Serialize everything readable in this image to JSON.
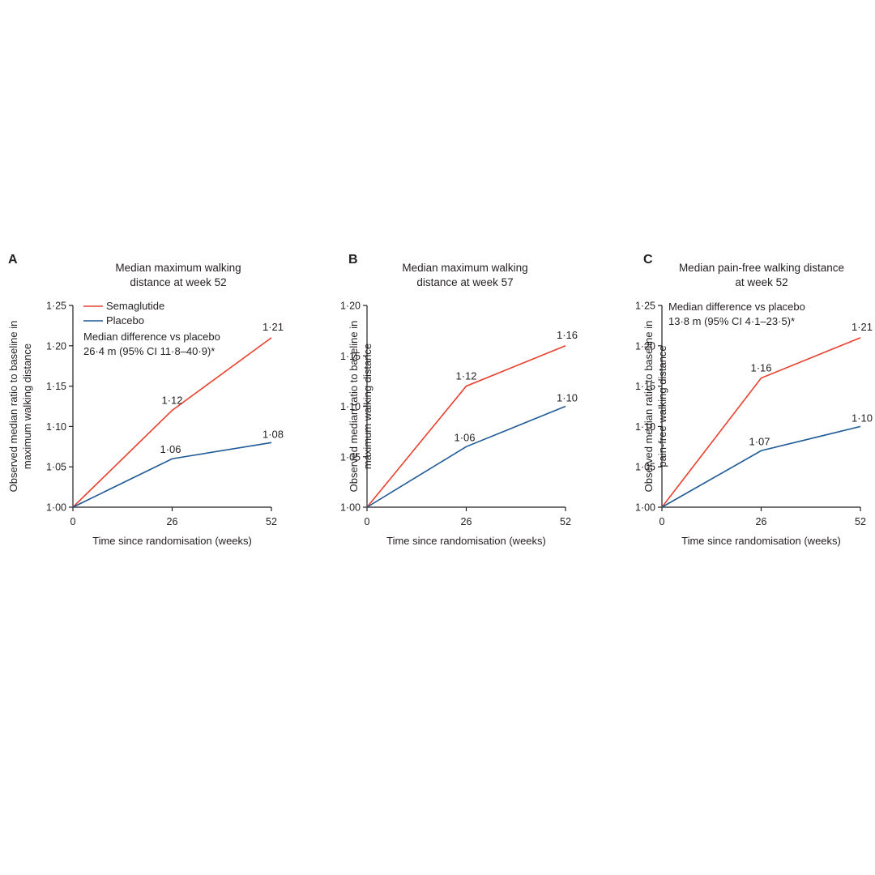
{
  "colors": {
    "semaglutide": "#e8402e",
    "placebo": "#1f5a96",
    "axis": "#231f20"
  },
  "chart_data": [
    {
      "panel": "A",
      "type": "line",
      "title": "Median maximum walking distance at week 52",
      "title_lines": [
        "Median maximum walking",
        "distance at week 52"
      ],
      "xlabel": "Time since randomisation (weeks)",
      "ylabel_lines": [
        "Observed median ratio to baseline in",
        "maximum walking distance"
      ],
      "x": [
        0,
        26,
        52
      ],
      "xticks": [
        "0",
        "26",
        "52"
      ],
      "ylim": [
        1.0,
        1.25
      ],
      "yticks": [
        1.0,
        1.05,
        1.1,
        1.15,
        1.2,
        1.25
      ],
      "ytick_labels": [
        "1·00",
        "1·05",
        "1·10",
        "1·15",
        "1·20",
        "1·25"
      ],
      "series": [
        {
          "name": "Semaglutide",
          "key": "semaglutide",
          "values": [
            1.0,
            1.12,
            1.21
          ],
          "labels": [
            "",
            "1·12",
            "1·21"
          ]
        },
        {
          "name": "Placebo",
          "key": "placebo",
          "values": [
            1.0,
            1.06,
            1.08
          ],
          "labels": [
            "",
            "1·06",
            "1·08"
          ]
        }
      ],
      "legend": {
        "placement": "top-left",
        "entries": [
          "Semaglutide",
          "Placebo"
        ]
      },
      "annotation": [
        "Median difference vs placebo",
        "26·4 m (95% CI 11·8–40·9)*"
      ]
    },
    {
      "panel": "B",
      "type": "line",
      "title": "Median maximum walking distance at week 57",
      "title_lines": [
        "Median maximum walking",
        "distance at week 57"
      ],
      "xlabel": "Time since randomisation (weeks)",
      "ylabel_lines": [
        "Observed median ratio to baseline in",
        "maximum walking distance"
      ],
      "x": [
        0,
        26,
        52
      ],
      "xticks": [
        "0",
        "26",
        "52"
      ],
      "ylim": [
        1.0,
        1.2
      ],
      "yticks": [
        1.0,
        1.05,
        1.1,
        1.15,
        1.2
      ],
      "ytick_labels": [
        "1·00",
        "1·05",
        "1·10",
        "1·15",
        "1·20"
      ],
      "series": [
        {
          "name": "Semaglutide",
          "key": "semaglutide",
          "values": [
            1.0,
            1.12,
            1.16
          ],
          "labels": [
            "",
            "1·12",
            "1·16"
          ]
        },
        {
          "name": "Placebo",
          "key": "placebo",
          "values": [
            1.0,
            1.06,
            1.1
          ],
          "labels": [
            "",
            "1·06",
            "1·10"
          ]
        }
      ],
      "legend": null,
      "annotation": []
    },
    {
      "panel": "C",
      "type": "line",
      "title": "Median pain-free walking distance at week 52",
      "title_lines": [
        "Median pain-free walking distance",
        "at week 52"
      ],
      "xlabel": "Time since randomisation (weeks)",
      "ylabel_lines": [
        "Observed median ratio to baseline in",
        "pain-free walking distance"
      ],
      "x": [
        0,
        26,
        52
      ],
      "xticks": [
        "0",
        "26",
        "52"
      ],
      "ylim": [
        1.0,
        1.25
      ],
      "yticks": [
        1.0,
        1.05,
        1.1,
        1.15,
        1.2,
        1.25
      ],
      "ytick_labels": [
        "1·00",
        "1·05",
        "1·10",
        "1·15",
        "1·20",
        "1·25"
      ],
      "series": [
        {
          "name": "Semaglutide",
          "key": "semaglutide",
          "values": [
            1.0,
            1.16,
            1.21
          ],
          "labels": [
            "",
            "1·16",
            "1·21"
          ]
        },
        {
          "name": "Placebo",
          "key": "placebo",
          "values": [
            1.0,
            1.07,
            1.1
          ],
          "labels": [
            "",
            "1·07",
            "1·10"
          ]
        }
      ],
      "legend": null,
      "annotation": [
        "Median difference vs placebo",
        "13·8 m (95% CI 4·1–23·5)*"
      ]
    }
  ]
}
